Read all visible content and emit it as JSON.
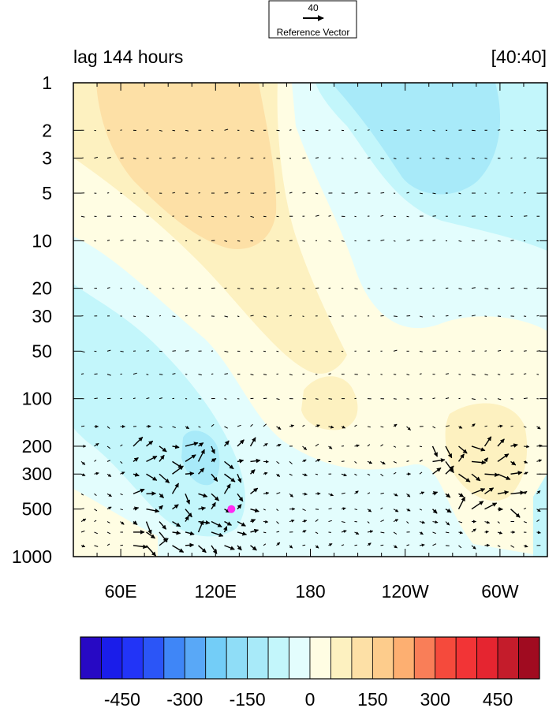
{
  "chart_data": {
    "type": "heatmap",
    "title_left": "lag 144 hours",
    "title_right": "[40:40]",
    "reference_vector": {
      "value": "40",
      "label": "Reference Vector"
    },
    "x_ticks": [
      "60E",
      "120E",
      "180",
      "120W",
      "60W"
    ],
    "y_ticks": [
      "1",
      "2",
      "3",
      "5",
      "10",
      "20",
      "30",
      "50",
      "100",
      "200",
      "300",
      "500",
      "1000"
    ],
    "y_scale": "log",
    "colorbar": {
      "labels": [
        "-450",
        "-300",
        "-150",
        "0",
        "150",
        "300",
        "450"
      ],
      "colors": [
        "#2709c4",
        "#1a1dea",
        "#2234f7",
        "#2b55f7",
        "#3f86f7",
        "#59a8f7",
        "#73cdf7",
        "#8fddf7",
        "#a8eaf9",
        "#c3f6fb",
        "#e3fdfd",
        "#fffde3",
        "#fdf1c0",
        "#fde0a6",
        "#fdcc8c",
        "#fdaf71",
        "#f97e58",
        "#f54a3c",
        "#f23436",
        "#e52530",
        "#c41c2b",
        "#a00b20"
      ]
    },
    "fill_colors": {
      "neg1": "#e3fdfd",
      "neg2": "#c3f6fb",
      "neg3": "#a8eaf9",
      "pos1": "#fffde3",
      "pos2": "#fdf1c0",
      "pos3": "#fde0a6"
    },
    "marker": {
      "lon": 130,
      "level": 500,
      "color": "#ff2bf2"
    }
  }
}
